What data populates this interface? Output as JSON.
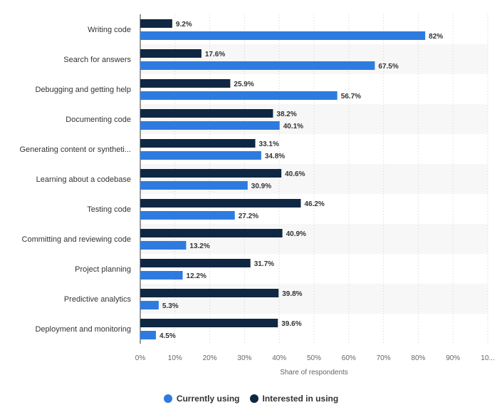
{
  "chart_data": {
    "type": "bar",
    "orientation": "horizontal",
    "categories": [
      "Writing code",
      "Search for answers",
      "Debugging and getting help",
      "Documenting code",
      "Generating content or syntheti...",
      "Learning about a codebase",
      "Testing code",
      "Committing and reviewing code",
      "Project planning",
      "Predictive analytics",
      "Deployment and monitoring"
    ],
    "series": [
      {
        "name": "Interested in using",
        "color": "#0f2742",
        "values": [
          9.2,
          17.6,
          25.9,
          38.2,
          33.1,
          40.6,
          46.2,
          40.9,
          31.7,
          39.8,
          39.6
        ],
        "labels": [
          "9.2%",
          "17.6%",
          "25.9%",
          "38.2%",
          "33.1%",
          "40.6%",
          "46.2%",
          "40.9%",
          "31.7%",
          "39.8%",
          "39.6%"
        ]
      },
      {
        "name": "Currently using",
        "color": "#2e7be0",
        "values": [
          82,
          67.5,
          56.7,
          40.1,
          34.8,
          30.9,
          27.2,
          13.2,
          12.2,
          5.3,
          4.5
        ],
        "labels": [
          "82%",
          "67.5%",
          "56.7%",
          "40.1%",
          "34.8%",
          "30.9%",
          "27.2%",
          "13.2%",
          "12.2%",
          "5.3%",
          "4.5%"
        ]
      }
    ],
    "xlim": [
      0,
      100
    ],
    "x_ticks": [
      "0%",
      "10%",
      "20%",
      "30%",
      "40%",
      "50%",
      "60%",
      "70%",
      "80%",
      "90%",
      "10..."
    ],
    "xlabel": "Share of respondents",
    "grid": true,
    "legend_position": "bottom-center"
  },
  "legend": [
    {
      "label": "Currently using",
      "color": "#2e7be0"
    },
    {
      "label": "Interested in using",
      "color": "#0f2742"
    }
  ]
}
